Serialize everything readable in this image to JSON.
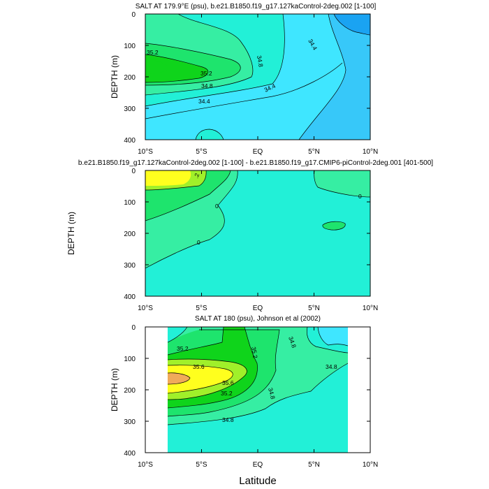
{
  "chart_data": [
    {
      "type": "contour",
      "title": "SALT AT 179.9°E (psu), b.e21.B1850.f19_g17.127kaControl-2deg.002 [1-100]",
      "xlabel": "",
      "ylabel": "DEPTH (m)",
      "xlim": [
        -10,
        10
      ],
      "ylim": [
        400,
        0
      ],
      "x_ticks": [
        "10°S",
        "5°S",
        "EQ",
        "5°N",
        "10°N"
      ],
      "y_ticks": [
        "0",
        "100",
        "200",
        "300",
        "400"
      ],
      "contour_labels": [
        "35.2",
        "35.2",
        "34.8",
        "34.8",
        "34.4",
        "34.4",
        "34.4"
      ]
    },
    {
      "type": "contour",
      "title": "b.e21.B1850.f19_g17.127kaControl-2deg.002 [1-100] - b.e21.B1850.f19_g17.CMIP6-piControl-2deg.001 [401-500]",
      "xlabel": "",
      "ylabel": "DEPTH (m)",
      "xlim": [
        -10,
        10
      ],
      "ylim": [
        400,
        0
      ],
      "x_ticks": [
        "10°S",
        "5°S",
        "EQ",
        "5°N",
        "10°N"
      ],
      "y_ticks": [
        "0",
        "100",
        "200",
        "300",
        "400"
      ],
      "contour_labels": [
        ".2",
        "0",
        "0",
        "0"
      ]
    },
    {
      "type": "contour",
      "title": "SALT AT 180 (psu), Johnson et al (2002)",
      "xlabel": "Latitude",
      "ylabel": "DEPTH (m)",
      "xlim": [
        -10,
        10
      ],
      "ylim": [
        400,
        0
      ],
      "data_xlim": [
        -8,
        8
      ],
      "x_ticks": [
        "10°S",
        "5°S",
        "EQ",
        "5°N",
        "10°N"
      ],
      "y_ticks": [
        "0",
        "100",
        "200",
        "300",
        "400"
      ],
      "contour_labels": [
        "35.2",
        "35.2",
        "35.6",
        "35.6",
        "35.2",
        "34.8",
        "34.8",
        "34.8",
        "34.8"
      ]
    }
  ],
  "colors": {
    "deep_blue": "#1aa3f2",
    "mid_blue": "#37c8f9",
    "cyan": "#3fe6ff",
    "aqua": "#22f0d7",
    "teal_green": "#36eea3",
    "green1": "#1ee46d",
    "green2": "#0fd41b",
    "lime": "#a0f02a",
    "yellow": "#ffff1e",
    "orange": "#f0aa5a"
  }
}
